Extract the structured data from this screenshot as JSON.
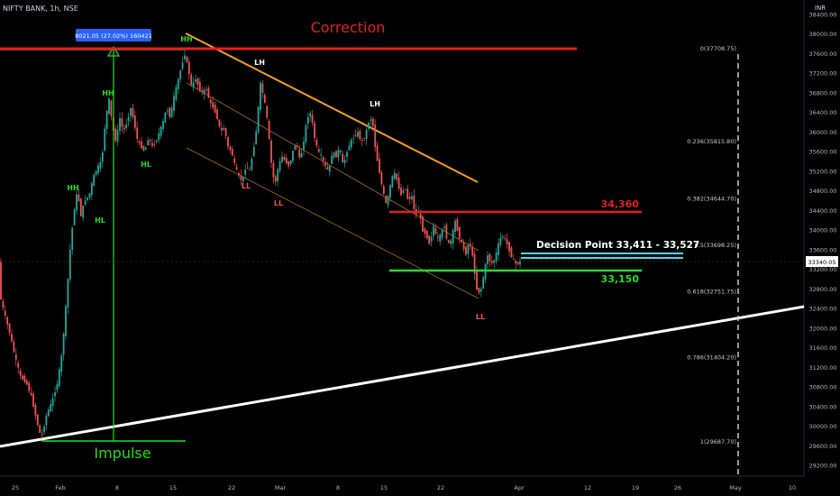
{
  "header": {
    "symbol_text": "NIFTY BANK, 1h, NSE",
    "currency": "INR"
  },
  "colors": {
    "up": "#26a69a",
    "down": "#ef5350",
    "red_line": "#e02020",
    "green_line": "#22dd22",
    "cyan_line": "#4fd8ef",
    "orange_line": "#f59d20",
    "trend_line": "#ffffff",
    "fib_text": "#cccccc",
    "price_tag": "#ffffff",
    "box_blue": "#2962ff"
  },
  "chart_data": {
    "type": "candlestick",
    "title": "",
    "xlabel": "",
    "ylabel": "",
    "ylim": [
      29000,
      38500
    ],
    "x_tick_labels": [
      "25",
      "Feb",
      "8",
      "15",
      "22",
      "Mar",
      "8",
      "15",
      "22",
      "Apr",
      "12",
      "19",
      "26",
      "May",
      "10"
    ],
    "y_tick_labels": [
      "38400.00",
      "38000.00",
      "37600.00",
      "37200.00",
      "36800.00",
      "36400.00",
      "36000.00",
      "35600.00",
      "35200.00",
      "34800.00",
      "34400.00",
      "34000.00",
      "33600.00",
      "33200.00",
      "32800.00",
      "32400.00",
      "32000.00",
      "31600.00",
      "31200.00",
      "30800.00",
      "30400.00",
      "30000.00",
      "29600.00",
      "29200.00"
    ],
    "y_ticks": [
      38400,
      38000,
      37600,
      37200,
      36800,
      36400,
      36000,
      35600,
      35200,
      34800,
      34400,
      34000,
      33600,
      33200,
      32800,
      32400,
      32000,
      31600,
      31200,
      30800,
      30400,
      30000,
      29600,
      29200
    ],
    "last_price": 33340.05,
    "last_price_label": "33340.05",
    "series_path": [
      [
        0,
        32750
      ],
      [
        6,
        32300
      ],
      [
        12,
        31900
      ],
      [
        18,
        31400
      ],
      [
        24,
        31000
      ],
      [
        30,
        30900
      ],
      [
        36,
        30600
      ],
      [
        42,
        30100
      ],
      [
        47,
        29750
      ],
      [
        53,
        30250
      ],
      [
        59,
        30500
      ],
      [
        65,
        30900
      ],
      [
        70,
        31500
      ],
      [
        75,
        32600
      ],
      [
        79,
        33600
      ],
      [
        83,
        34350
      ],
      [
        87,
        34800
      ],
      [
        91,
        34300
      ],
      [
        95,
        34600
      ],
      [
        100,
        34700
      ],
      [
        105,
        35100
      ],
      [
        110,
        35300
      ],
      [
        114,
        35400
      ],
      [
        118,
        36200
      ],
      [
        122,
        36700
      ],
      [
        126,
        36100
      ],
      [
        130,
        35800
      ],
      [
        134,
        36300
      ],
      [
        138,
        36000
      ],
      [
        142,
        36200
      ],
      [
        146,
        36500
      ],
      [
        150,
        36200
      ],
      [
        154,
        35800
      ],
      [
        158,
        35700
      ],
      [
        162,
        35600
      ],
      [
        166,
        35900
      ],
      [
        170,
        35700
      ],
      [
        174,
        35800
      ],
      [
        178,
        36000
      ],
      [
        182,
        36200
      ],
      [
        186,
        36500
      ],
      [
        190,
        36300
      ],
      [
        194,
        36700
      ],
      [
        198,
        37000
      ],
      [
        202,
        37300
      ],
      [
        206,
        37600
      ],
      [
        210,
        37300
      ],
      [
        214,
        36900
      ],
      [
        218,
        37100
      ],
      [
        222,
        36900
      ],
      [
        226,
        36800
      ],
      [
        230,
        36900
      ],
      [
        234,
        36600
      ],
      [
        238,
        36500
      ],
      [
        242,
        36300
      ],
      [
        246,
        36000
      ],
      [
        250,
        36100
      ],
      [
        254,
        35700
      ],
      [
        258,
        35600
      ],
      [
        262,
        35300
      ],
      [
        266,
        35100
      ],
      [
        270,
        35000
      ],
      [
        274,
        35300
      ],
      [
        278,
        35200
      ],
      [
        282,
        35600
      ],
      [
        286,
        36100
      ],
      [
        290,
        37000
      ],
      [
        294,
        36700
      ],
      [
        298,
        36200
      ],
      [
        302,
        35400
      ],
      [
        306,
        34900
      ],
      [
        310,
        35300
      ],
      [
        314,
        35500
      ],
      [
        318,
        35400
      ],
      [
        322,
        35300
      ],
      [
        326,
        35600
      ],
      [
        330,
        35800
      ],
      [
        334,
        35400
      ],
      [
        338,
        35800
      ],
      [
        342,
        36300
      ],
      [
        346,
        36400
      ],
      [
        350,
        35900
      ],
      [
        354,
        35600
      ],
      [
        358,
        35500
      ],
      [
        362,
        35300
      ],
      [
        366,
        35200
      ],
      [
        370,
        35600
      ],
      [
        374,
        35500
      ],
      [
        378,
        35700
      ],
      [
        382,
        35300
      ],
      [
        386,
        35600
      ],
      [
        390,
        35800
      ],
      [
        394,
        35900
      ],
      [
        398,
        36000
      ],
      [
        402,
        35800
      ],
      [
        406,
        35900
      ],
      [
        410,
        36200
      ],
      [
        414,
        36300
      ],
      [
        418,
        35600
      ],
      [
        422,
        35200
      ],
      [
        426,
        34800
      ],
      [
        430,
        34500
      ],
      [
        434,
        34900
      ],
      [
        438,
        35200
      ],
      [
        442,
        35000
      ],
      [
        446,
        34700
      ],
      [
        450,
        34900
      ],
      [
        454,
        34600
      ],
      [
        458,
        34700
      ],
      [
        462,
        34300
      ],
      [
        466,
        34400
      ],
      [
        470,
        34000
      ],
      [
        474,
        33900
      ],
      [
        478,
        33700
      ],
      [
        482,
        34100
      ],
      [
        486,
        33800
      ],
      [
        490,
        33900
      ],
      [
        494,
        34100
      ],
      [
        498,
        33700
      ],
      [
        502,
        33800
      ],
      [
        506,
        34200
      ],
      [
        510,
        33900
      ],
      [
        514,
        33700
      ],
      [
        518,
        33500
      ],
      [
        522,
        33800
      ],
      [
        526,
        33400
      ],
      [
        530,
        32800
      ],
      [
        534,
        32700
      ],
      [
        538,
        33100
      ],
      [
        542,
        33500
      ],
      [
        546,
        33300
      ],
      [
        550,
        33400
      ],
      [
        554,
        33700
      ],
      [
        558,
        33900
      ],
      [
        562,
        33800
      ],
      [
        566,
        33600
      ],
      [
        570,
        33400
      ],
      [
        574,
        33300
      ],
      [
        578,
        33350
      ]
    ],
    "fib_levels": [
      {
        "label": "0(37708.75)",
        "price": 37708.75
      },
      {
        "label": "0.236(35815.80)",
        "price": 35815.8
      },
      {
        "label": "0.382(34644.70)",
        "price": 34644.7
      },
      {
        "label": "0.5(33698.25)",
        "price": 33698.25
      },
      {
        "label": "0.618(32751.75)",
        "price": 32751.75
      },
      {
        "label": "0.786(31404.20)",
        "price": 31404.2
      },
      {
        "label": "1(29687.70)",
        "price": 29687.7
      }
    ],
    "annotations": {
      "correction": "Correction",
      "impulse": "Impulse",
      "measure_box": "8021.05 (27.02%) 160421",
      "decision_point": "Decision Point 33,411 - 33,527",
      "resistance_label": "34,360",
      "support_label": "33,150",
      "swing_labels": [
        {
          "text": "HH",
          "color": "green",
          "x": 207,
          "y": 46
        },
        {
          "text": "HH",
          "color": "green",
          "x": 120,
          "y": 106
        },
        {
          "text": "HH",
          "color": "green",
          "x": 81,
          "y": 211
        },
        {
          "text": "HL",
          "color": "green",
          "x": 111,
          "y": 247
        },
        {
          "text": "HL",
          "color": "green",
          "x": 162,
          "y": 185
        },
        {
          "text": "LH",
          "color": "white",
          "x": 288,
          "y": 72
        },
        {
          "text": "LH",
          "color": "white",
          "x": 416,
          "y": 118
        },
        {
          "text": "LL",
          "color": "red",
          "x": 273,
          "y": 209
        },
        {
          "text": "LL",
          "color": "red",
          "x": 309,
          "y": 228
        },
        {
          "text": "LL",
          "color": "red",
          "x": 533,
          "y": 354
        }
      ]
    }
  }
}
